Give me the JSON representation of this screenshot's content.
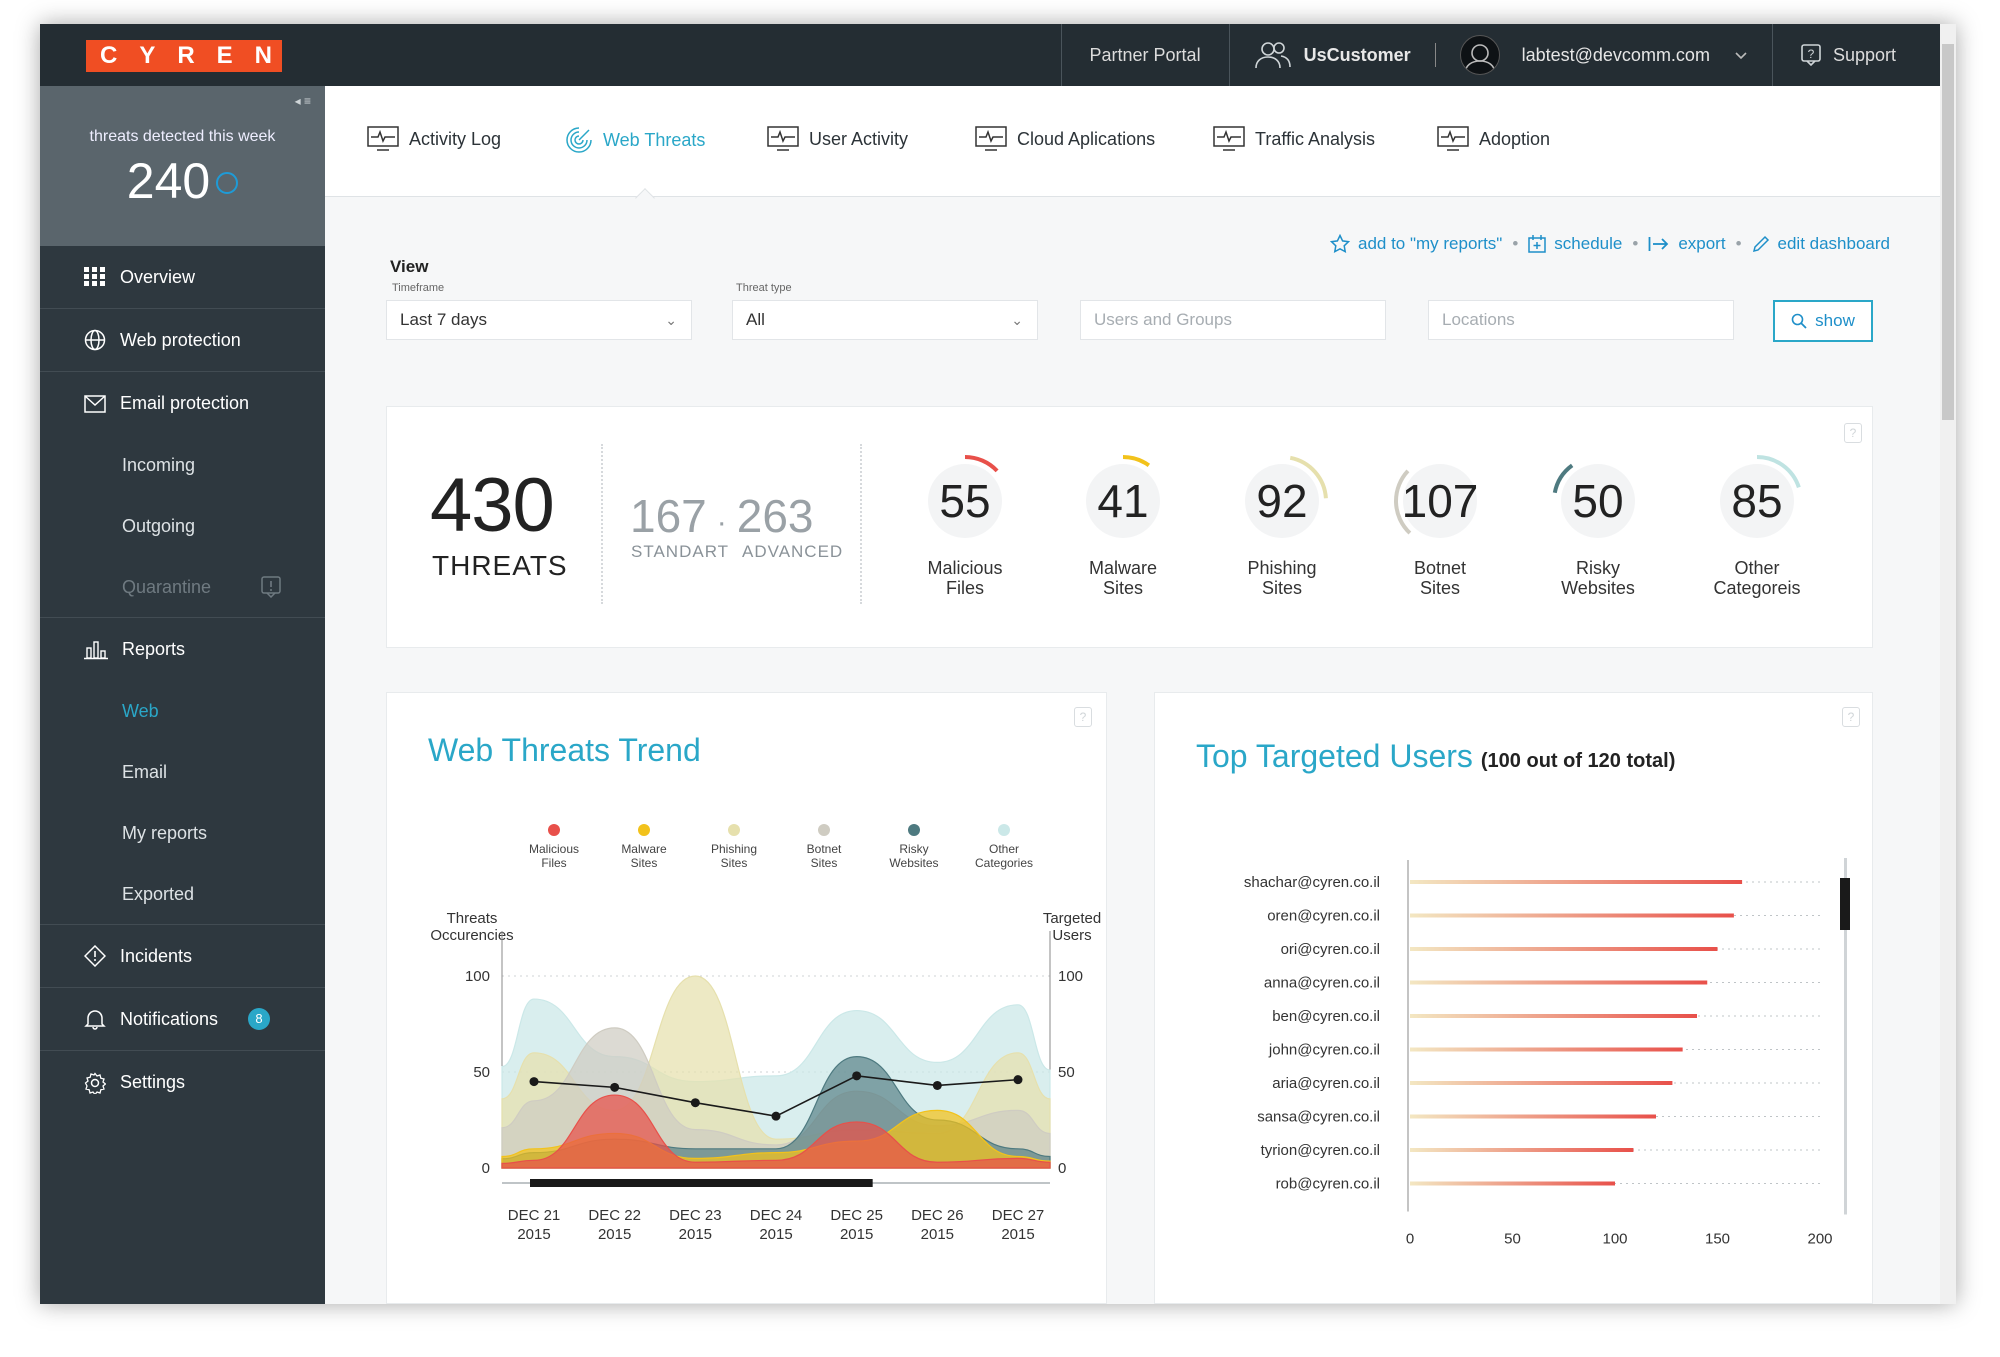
{
  "brand": {
    "name": "CYREN",
    "color": "#f04e23"
  },
  "topbar": {
    "partner_portal": "Partner Portal",
    "customer": "UsCustomer",
    "email": "labtest@devcomm.com",
    "support": "Support"
  },
  "sidebar": {
    "threats_label": "threats detected this week",
    "threats_count": "240",
    "items": [
      {
        "label": "Overview",
        "icon": "grid-icon"
      },
      {
        "label": "Web protection",
        "icon": "globe-icon"
      },
      {
        "label": "Email protection",
        "icon": "envelope-icon"
      },
      {
        "label": "Incoming"
      },
      {
        "label": "Outgoing"
      },
      {
        "label": "Quarantine"
      },
      {
        "label": "Reports",
        "icon": "bar-chart-icon"
      },
      {
        "label": "Web"
      },
      {
        "label": "Email"
      },
      {
        "label": "My reports"
      },
      {
        "label": "Exported"
      },
      {
        "label": "Incidents",
        "icon": "alert-diamond-icon"
      },
      {
        "label": "Notifications",
        "icon": "bell-icon",
        "badge": "8"
      },
      {
        "label": "Settings",
        "icon": "gear-icon"
      }
    ]
  },
  "tabs": [
    {
      "label": "Activity Log"
    },
    {
      "label": "Web Threats",
      "active": true
    },
    {
      "label": "User Activity"
    },
    {
      "label": "Cloud Aplications"
    },
    {
      "label": "Traffic Analysis"
    },
    {
      "label": "Adoption"
    }
  ],
  "actions": {
    "add": "add to \"my reports\"",
    "schedule": "schedule",
    "export": "export",
    "edit": "edit dashboard"
  },
  "filters": {
    "view_title": "View",
    "timeframe_label": "Timeframe",
    "timeframe_value": "Last 7 days",
    "threat_type_label": "Threat type",
    "threat_type_value": "All",
    "users_placeholder": "Users and Groups",
    "locations_placeholder": "Locations",
    "show": "show"
  },
  "stats": {
    "total": "430",
    "total_label": "THREATS",
    "standard": "167",
    "advanced": "263",
    "standard_label": "STANDART",
    "advanced_label": "ADVANCED",
    "gauges": [
      {
        "value": "55",
        "line1": "Malicious",
        "line2": "Files",
        "color": "#e8504a",
        "fraction": 0.13
      },
      {
        "value": "41",
        "line1": "Malware",
        "line2": "Sites",
        "color": "#f2c21b",
        "fraction": 0.1
      },
      {
        "value": "92",
        "line1": "Phishing",
        "line2": "Sites",
        "color": "#e6e0ad",
        "fraction": 0.21
      },
      {
        "value": "107",
        "line1": "Botnet",
        "line2": "Sites",
        "color": "#cfccc2",
        "fraction": 0.25
      },
      {
        "value": "50",
        "line1": "Risky",
        "line2": "Websites",
        "color": "#4e7a80",
        "fraction": 0.12
      },
      {
        "value": "85",
        "line1": "Other",
        "line2": "Categoreis",
        "color": "#bfe3e2",
        "fraction": 0.2
      }
    ]
  },
  "trend": {
    "title": "Web Threats Trend",
    "left_axis": [
      "Threats",
      "Occurencies"
    ],
    "right_axis": [
      "Targeted",
      "Users"
    ],
    "legend": [
      {
        "line1": "Malicious",
        "line2": "Files",
        "color": "#e8504a"
      },
      {
        "line1": "Malware",
        "line2": "Sites",
        "color": "#f2c21b"
      },
      {
        "line1": "Phishing",
        "line2": "Sites",
        "color": "#e6e0ad"
      },
      {
        "line1": "Botnet",
        "line2": "Sites",
        "color": "#cfccc2"
      },
      {
        "line1": "Risky",
        "line2": "Websites",
        "color": "#4e7a80"
      },
      {
        "line1": "Other",
        "line2": "Categories",
        "color": "#cbe8e8"
      }
    ],
    "yticks": [
      "100",
      "50",
      "0"
    ],
    "dates": [
      {
        "d": "DEC 21",
        "y": "2015"
      },
      {
        "d": "DEC 22",
        "y": "2015"
      },
      {
        "d": "DEC 23",
        "y": "2015"
      },
      {
        "d": "DEC 24",
        "y": "2015"
      },
      {
        "d": "DEC 25",
        "y": "2015"
      },
      {
        "d": "DEC 26",
        "y": "2015"
      },
      {
        "d": "DEC 27",
        "y": "2015"
      }
    ]
  },
  "chart_data": [
    {
      "type": "area",
      "title": "Web Threats Trend",
      "x": [
        "DEC 21 2015",
        "DEC 22 2015",
        "DEC 23 2015",
        "DEC 24 2015",
        "DEC 25 2015",
        "DEC 26 2015",
        "DEC 27 2015"
      ],
      "ylabel": "Threats Occurencies",
      "y2label": "Targeted Users",
      "ylim": [
        0,
        100
      ],
      "series": [
        {
          "name": "Malicious Files",
          "values": [
            4,
            38,
            3,
            4,
            24,
            3,
            5
          ]
        },
        {
          "name": "Malware Sites",
          "values": [
            10,
            18,
            5,
            8,
            14,
            30,
            6
          ]
        },
        {
          "name": "Phishing Sites",
          "values": [
            60,
            30,
            100,
            15,
            20,
            18,
            60
          ]
        },
        {
          "name": "Botnet Sites",
          "values": [
            35,
            73,
            20,
            12,
            40,
            22,
            30
          ]
        },
        {
          "name": "Risky Websites",
          "values": [
            8,
            15,
            10,
            10,
            58,
            25,
            10
          ]
        },
        {
          "name": "Other Categories",
          "values": [
            88,
            58,
            45,
            48,
            82,
            55,
            85
          ]
        },
        {
          "name": "Targeted Users",
          "values": [
            45,
            42,
            34,
            27,
            48,
            43,
            46
          ]
        }
      ]
    },
    {
      "type": "bar",
      "title": "Top Targeted Users",
      "categories": [
        "shachar@cyren.co.il",
        "oren@cyren.co.il",
        "ori@cyren.co.il",
        "anna@cyren.co.il",
        "ben@cyren.co.il",
        "john@cyren.co.il",
        "aria@cyren.co.il",
        "sansa@cyren.co.il",
        "tyrion@cyren.co.il",
        "rob@cyren.co.il"
      ],
      "values": [
        162,
        158,
        150,
        145,
        140,
        133,
        128,
        120,
        109,
        100
      ],
      "xlim": [
        0,
        200
      ],
      "xticks": [
        "0",
        "50",
        "100",
        "150",
        "200"
      ]
    }
  ],
  "users": {
    "title": "Top Targeted Users",
    "subtitle": "(100 out of 120 total)"
  }
}
